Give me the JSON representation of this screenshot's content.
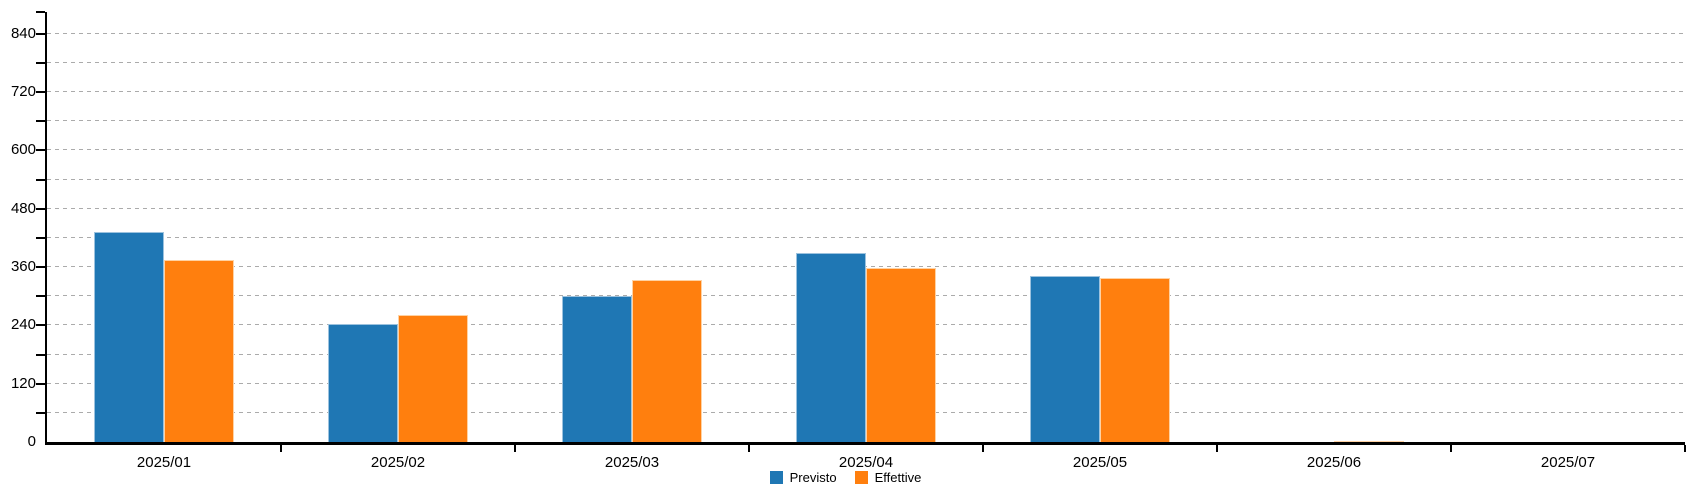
{
  "chart_data": {
    "type": "bar",
    "title": "",
    "xlabel": "",
    "ylabel": "",
    "categories": [
      "2025/01",
      "2025/02",
      "2025/03",
      "2025/04",
      "2025/05",
      "2025/06",
      "2025/07"
    ],
    "series": [
      {
        "name": "Previsto",
        "color": "#1f77b4",
        "border_color": "#9cc2de",
        "values": [
          432,
          243,
          300,
          388,
          341,
          0,
          0
        ]
      },
      {
        "name": "Effettive",
        "color": "#ff7f0e",
        "border_color": "#ffd2a3",
        "values": [
          374,
          261,
          334,
          359,
          337,
          2,
          0
        ]
      }
    ],
    "ylim": [
      0,
      885
    ],
    "y_axis": {
      "grid_step": 60,
      "label_step": 120,
      "grid_top": 840,
      "tick_labels": [
        "0",
        "120",
        "240",
        "360",
        "480",
        "600",
        "720",
        "840"
      ]
    },
    "grid": "horizontal-dashed",
    "grid_color": "#ababab",
    "axis_color": "#000000",
    "legend_position": "bottom-center"
  }
}
